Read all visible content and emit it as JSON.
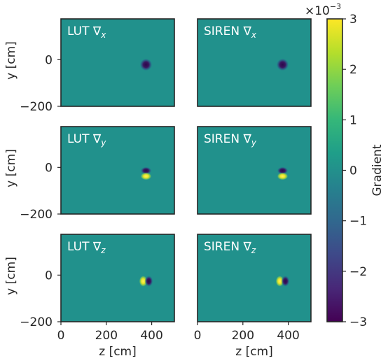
{
  "chart_data": {
    "type": "heatmap",
    "panels": [
      {
        "title_prefix": "LUT ∇",
        "subscript": "x",
        "component": "x",
        "source": "LUT"
      },
      {
        "title_prefix": "SIREN ∇",
        "subscript": "x",
        "component": "x",
        "source": "SIREN"
      },
      {
        "title_prefix": "LUT ∇",
        "subscript": "y",
        "component": "y",
        "source": "LUT"
      },
      {
        "title_prefix": "SIREN ∇",
        "subscript": "y",
        "component": "y",
        "source": "SIREN"
      },
      {
        "title_prefix": "LUT ∇",
        "subscript": "z",
        "component": "z",
        "source": "LUT"
      },
      {
        "title_prefix": "SIREN ∇",
        "subscript": "z",
        "component": "z",
        "source": "SIREN"
      }
    ],
    "xlabel": "z [cm]",
    "ylabel": "y [cm]",
    "xlim": [
      0,
      500
    ],
    "ylim": [
      -200,
      175
    ],
    "x_ticks": [
      0,
      200,
      400
    ],
    "x_tick_labels": [
      "0",
      "200",
      "400"
    ],
    "y_ticks": [
      0,
      -200
    ],
    "y_tick_labels": [
      "0",
      "−200"
    ],
    "feature_center": {
      "z": 375,
      "y": -20
    },
    "background_value": 0.0,
    "colorbar": {
      "label": "Gradient",
      "scale_label": "×10",
      "scale_exponent": "−3",
      "ticks": [
        3,
        2,
        1,
        0,
        -1,
        -2,
        -3
      ],
      "tick_labels": [
        "3",
        "2",
        "1",
        "0",
        "−1",
        "−2",
        "−3"
      ],
      "range": [
        -3,
        3
      ],
      "colormap": "viridis",
      "colors": [
        "#440154",
        "#482878",
        "#3e4989",
        "#31688e",
        "#26828e",
        "#1f9e89",
        "#35b779",
        "#6ece58",
        "#b5de2b",
        "#fde725"
      ]
    },
    "grid": false
  }
}
